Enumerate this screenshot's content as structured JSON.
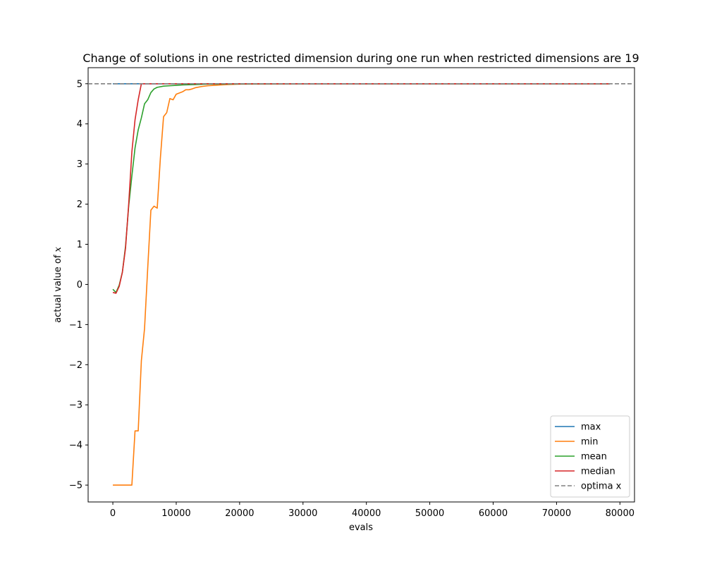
{
  "chart_data": {
    "type": "line",
    "title": "Change of solutions in one restricted dimension during one run when restricted dimensions are 19",
    "xlabel": "evals",
    "ylabel": "actual value of x",
    "xlim": [
      -3900,
      82300
    ],
    "ylim": [
      -5.42,
      5.4
    ],
    "xticks": [
      0,
      10000,
      20000,
      30000,
      40000,
      50000,
      60000,
      70000,
      80000
    ],
    "yticks": [
      -5,
      -4,
      -3,
      -2,
      -1,
      0,
      1,
      2,
      3,
      4,
      5
    ],
    "grid": false,
    "legend_position": "lower-right",
    "reference_line": {
      "name": "optima x",
      "y": 5,
      "color": "#808080",
      "style": "dashed"
    },
    "series": [
      {
        "name": "max",
        "color": "#1f77b4",
        "x": [
          0,
          5000,
          10000,
          20000,
          40000,
          78400
        ],
        "y": [
          5,
          5,
          5,
          5,
          5,
          5
        ]
      },
      {
        "name": "min",
        "color": "#ff7f0e",
        "x": [
          0,
          1000,
          2000,
          3000,
          3500,
          4000,
          4500,
          5000,
          5500,
          6000,
          6500,
          7000,
          7500,
          8000,
          8500,
          9000,
          9500,
          10000,
          10500,
          11000,
          11500,
          12000,
          12500,
          13000,
          14000,
          15000,
          16000,
          17000,
          18000,
          20000,
          25000,
          30000,
          40000,
          50000,
          60000,
          70000,
          78400
        ],
        "y": [
          -5,
          -5,
          -5,
          -5,
          -3.65,
          -3.65,
          -1.9,
          -1.1,
          0.4,
          1.85,
          1.95,
          1.9,
          3.15,
          4.18,
          4.28,
          4.63,
          4.6,
          4.74,
          4.77,
          4.8,
          4.85,
          4.85,
          4.87,
          4.9,
          4.93,
          4.95,
          4.96,
          4.97,
          4.98,
          4.99,
          4.995,
          5,
          5,
          5,
          5,
          5,
          5
        ]
      },
      {
        "name": "mean",
        "color": "#2ca02c",
        "x": [
          0,
          500,
          1000,
          1500,
          2000,
          2500,
          3000,
          3500,
          4000,
          4500,
          5000,
          5500,
          6000,
          6500,
          7000,
          8000,
          9000,
          10000,
          11000,
          12000,
          13000,
          15000,
          20000,
          30000,
          40000,
          50000,
          60000,
          70000,
          78400
        ],
        "y": [
          -0.12,
          -0.2,
          -0.02,
          0.3,
          0.95,
          1.95,
          2.7,
          3.4,
          3.85,
          4.15,
          4.5,
          4.6,
          4.78,
          4.87,
          4.91,
          4.94,
          4.95,
          4.96,
          4.97,
          4.975,
          4.98,
          4.99,
          4.995,
          5,
          5,
          5,
          5,
          5,
          5
        ]
      },
      {
        "name": "median",
        "color": "#d62728",
        "x": [
          0,
          500,
          1000,
          1500,
          2000,
          2500,
          3000,
          3500,
          4000,
          4500,
          5000,
          6000,
          7000,
          10000,
          20000,
          40000,
          60000,
          78400
        ],
        "y": [
          -0.2,
          -0.22,
          -0.05,
          0.3,
          0.9,
          2.0,
          3.3,
          4.1,
          4.6,
          5.0,
          5.0,
          5.0,
          5.0,
          5.0,
          5.0,
          5.0,
          5.0,
          5.0
        ]
      }
    ]
  }
}
